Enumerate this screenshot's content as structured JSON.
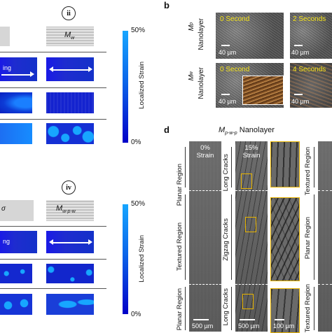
{
  "panel_b": {
    "letter": "b",
    "row1_label_main": "M",
    "row1_label_sub": "p",
    "row1_label_suffix": "Nanolayer",
    "row2_label_main": "M",
    "row2_label_sub": "w",
    "row2_label_suffix": "Nanolayer",
    "tiles": [
      {
        "time": "0 Second",
        "scale": "40 µm"
      },
      {
        "time": "2 Seconds",
        "scale": "40 µm"
      },
      {
        "time": "0 Second",
        "scale": "40 µm"
      },
      {
        "time": "4 Seconds",
        "scale": "40 µm"
      }
    ]
  },
  "panel_ii": {
    "roman": "ii",
    "right_label_main": "M",
    "right_label_sub": "w",
    "left_partial": "ing",
    "colorbar_top": "50%",
    "colorbar_bottom": "0%",
    "colorbar_title": "Localized Strain"
  },
  "panel_iv": {
    "roman": "iv",
    "right_label_main": "M",
    "right_label_sub": "w-p-w",
    "left_partial_a": "σ",
    "left_partial_b": "ng",
    "colorbar_top": "50%",
    "colorbar_bottom": "0%",
    "colorbar_title": "Localized Strain"
  },
  "panel_d": {
    "letter": "d",
    "title_main": "M",
    "title_sub": "p-w-p",
    "title_suffix": "Nanolayer",
    "col1_strain_pct": "0%",
    "col1_strain_word": "Strain",
    "col2_strain_pct": "15%",
    "col2_strain_word": "Strain",
    "left_regions": [
      "Planar Region",
      "Textured Region",
      "Planar Region"
    ],
    "mid_regions": [
      "Long Cracks",
      "Zigzag Cracks",
      "Long Cracks"
    ],
    "right_regions": [
      "Textured Region",
      "Planar Region",
      "Textured Region"
    ],
    "scale_col1": "500 µm",
    "scale_col2": "500 µm",
    "scale_col3": "100 µm"
  }
}
